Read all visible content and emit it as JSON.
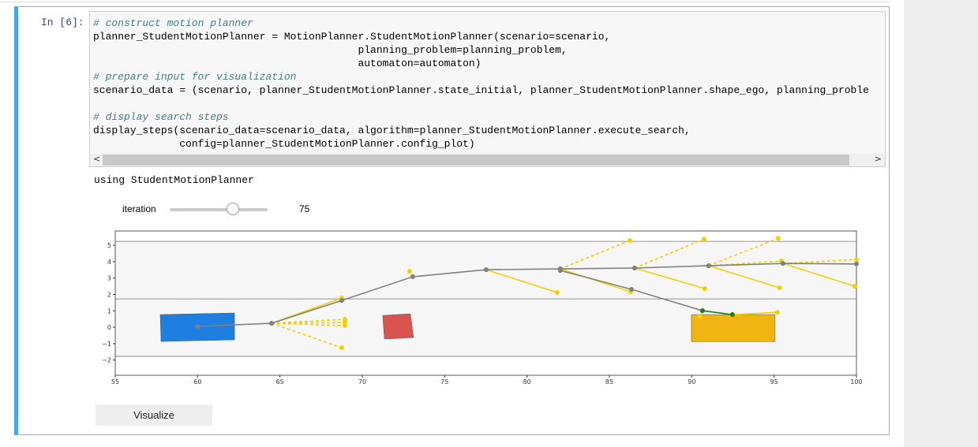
{
  "notebook": {
    "prompt": "In [6]:",
    "code_groups": [
      [
        "# construct motion planner",
        "planner_StudentMotionPlanner = MotionPlanner.StudentMotionPlanner(scenario=scenario,",
        "                                           planning_problem=planning_problem,",
        "                                           automaton=automaton)",
        "# prepare input for visualization",
        "scenario_data = (scenario, planner_StudentMotionPlanner.state_initial, planner_StudentMotionPlanner.shape_ego, planning_proble"
      ],
      [
        "# display search steps",
        "display_steps(scenario_data=scenario_data, algorithm=planner_StudentMotionPlanner.execute_search,",
        "              config=planner_StudentMotionPlanner.config_plot)"
      ]
    ],
    "output": "using StudentMotionPlanner",
    "slider_label": "iteration",
    "slider_value": "75",
    "button": "Visualize"
  },
  "chart_data": {
    "type": "trajectory",
    "xlim": [
      55,
      100
    ],
    "ylim": [
      -2.93,
      5.87
    ],
    "xticks": [
      55,
      60,
      65,
      70,
      75,
      80,
      85,
      90,
      95,
      100
    ],
    "yticks": [
      {
        "value": -2,
        "label": "−2"
      },
      {
        "value": -1,
        "label": "−1"
      },
      0,
      1,
      2,
      3,
      4,
      5
    ],
    "hlines": [
      5.24,
      1.73,
      -1.78
    ],
    "polygons": [
      {
        "color": "#1e7fe0",
        "x": [
          57.73,
          62.24,
          62.24,
          57.78
        ],
        "y": [
          0.77,
          0.87,
          -0.77,
          -0.87
        ]
      },
      {
        "color": "#d9534f",
        "x": [
          71.24,
          72.92,
          73.11,
          71.34
        ],
        "y": [
          0.72,
          0.82,
          -0.63,
          -0.72
        ]
      },
      {
        "color": "#f0b513",
        "x": [
          89.98,
          95.06,
          95.06,
          89.98
        ],
        "y": [
          0.77,
          0.77,
          -0.87,
          -0.87
        ]
      }
    ],
    "paths": [
      {
        "color": "#f5d000",
        "dashed": true,
        "x": [
          64.49,
          68.94
        ],
        "y": [
          0.24,
          0.48
        ]
      },
      {
        "color": "#f5d000",
        "dashed": true,
        "x": [
          64.49,
          68.94
        ],
        "y": [
          0.24,
          0.29
        ]
      },
      {
        "color": "#f5d000",
        "dashed": true,
        "x": [
          64.49,
          68.94
        ],
        "y": [
          0.24,
          0.1
        ]
      },
      {
        "color": "#f5d000",
        "dashed": true,
        "x": [
          64.49,
          68.75
        ],
        "y": [
          0.24,
          -1.25
        ]
      },
      {
        "color": "#f5d000",
        "dashed": false,
        "x": [
          64.49,
          68.75
        ],
        "y": [
          0.24,
          1.78
        ]
      },
      {
        "color": "#f5d000",
        "dashed": true,
        "x": [
          73.06,
          72.87
        ],
        "y": [
          3.08,
          3.41
        ]
      },
      {
        "color": "#f5d000",
        "dashed": false,
        "x": [
          77.52,
          81.83
        ],
        "y": [
          3.51,
          2.12
        ]
      },
      {
        "color": "#f5d000",
        "dashed": true,
        "x": [
          82.02,
          86.24
        ],
        "y": [
          3.56,
          5.29
        ]
      },
      {
        "color": "#f5d000",
        "dashed": false,
        "x": [
          82.02,
          86.29
        ],
        "y": [
          3.56,
          2.16
        ]
      },
      {
        "color": "#f5d000",
        "dashed": true,
        "x": [
          86.53,
          90.75
        ],
        "y": [
          3.61,
          5.38
        ]
      },
      {
        "color": "#f5d000",
        "dashed": false,
        "x": [
          86.53,
          90.79
        ],
        "y": [
          3.61,
          2.36
        ]
      },
      {
        "color": "#f5d000",
        "dashed": true,
        "x": [
          91.03,
          95.25
        ],
        "y": [
          3.75,
          5.43
        ]
      },
      {
        "color": "#f5d000",
        "dashed": true,
        "x": [
          91.03,
          95.44
        ],
        "y": [
          3.75,
          4.04
        ]
      },
      {
        "color": "#f5d000",
        "dashed": false,
        "x": [
          91.03,
          95.34
        ],
        "y": [
          3.75,
          2.4
        ]
      },
      {
        "color": "#f5d000",
        "dashed": false,
        "x": [
          95.54,
          99.9
        ],
        "y": [
          3.89,
          2.5
        ]
      },
      {
        "color": "#f5d000",
        "dashed": true,
        "x": [
          95.54,
          100
        ],
        "y": [
          3.89,
          4.13
        ]
      },
      {
        "color": "#f5d000",
        "dashed": false,
        "x": [
          92.47,
          95.2
        ],
        "y": [
          0.77,
          0.91
        ]
      },
      {
        "color": "#f5d000",
        "dashed": false,
        "x": [
          90.65,
          90.5
        ],
        "y": [
          1.01,
          0.65
        ]
      },
      {
        "color": "#808080",
        "dashed": false,
        "x": [
          60,
          64.49,
          68.75,
          73.06,
          77.52,
          82.02,
          86.53,
          91.03,
          95.54,
          100
        ],
        "y": [
          0.05,
          0.24,
          1.63,
          3.08,
          3.51,
          3.56,
          3.61,
          3.75,
          3.89,
          3.86
        ]
      },
      {
        "color": "#808080",
        "dashed": false,
        "x": [
          82.02,
          86.34,
          90.65
        ],
        "y": [
          3.46,
          2.31,
          1.01
        ]
      },
      {
        "color": "#1a7f1a",
        "dashed": false,
        "x": [
          90.65,
          92.47
        ],
        "y": [
          1.01,
          0.77
        ]
      }
    ]
  }
}
